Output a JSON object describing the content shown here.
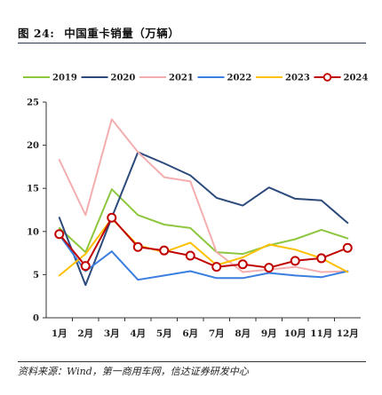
{
  "figure": {
    "label": "图 24:",
    "title": "中国重卡销量（万辆）",
    "source": "资料来源：Wind，第一商用车网，信达证券研发中心"
  },
  "chart_data": {
    "type": "line",
    "categories": [
      "1月",
      "2月",
      "3月",
      "4月",
      "5月",
      "6月",
      "7月",
      "8月",
      "9月",
      "10月",
      "11月",
      "12月"
    ],
    "yticks": [
      "0",
      "5",
      "10",
      "15",
      "20",
      "25"
    ],
    "ylim": [
      0,
      25
    ],
    "grid": false,
    "legend_position": "top",
    "series": [
      {
        "name": "2019",
        "color": "#8dc63f",
        "marker": false,
        "values": [
          10.4,
          7.6,
          14.9,
          11.9,
          10.8,
          10.4,
          7.6,
          7.4,
          8.4,
          9.1,
          10.2,
          9.2
        ]
      },
      {
        "name": "2020",
        "color": "#2c4a7c",
        "marker": false,
        "values": [
          11.6,
          3.8,
          11.6,
          19.2,
          17.9,
          16.5,
          13.9,
          13.0,
          15.1,
          13.8,
          13.6,
          11.0
        ]
      },
      {
        "name": "2021",
        "color": "#f4aeb0",
        "marker": false,
        "values": [
          18.3,
          11.9,
          23.0,
          19.2,
          16.3,
          15.8,
          7.6,
          5.3,
          5.6,
          5.9,
          5.3,
          5.4
        ]
      },
      {
        "name": "2022",
        "color": "#3a7fe0",
        "marker": false,
        "values": [
          9.6,
          5.4,
          7.7,
          4.4,
          4.9,
          5.4,
          4.6,
          4.6,
          5.2,
          4.9,
          4.7,
          5.4
        ]
      },
      {
        "name": "2023",
        "color": "#ffc000",
        "marker": false,
        "values": [
          4.9,
          7.4,
          11.5,
          8.4,
          7.6,
          8.7,
          6.1,
          7.0,
          8.5,
          7.9,
          6.9,
          5.3
        ]
      },
      {
        "name": "2024",
        "color": "#c00000",
        "marker": true,
        "values": [
          9.7,
          6.0,
          11.6,
          8.2,
          7.8,
          7.2,
          5.9,
          6.2,
          5.8,
          6.6,
          6.9,
          8.1
        ]
      }
    ]
  }
}
